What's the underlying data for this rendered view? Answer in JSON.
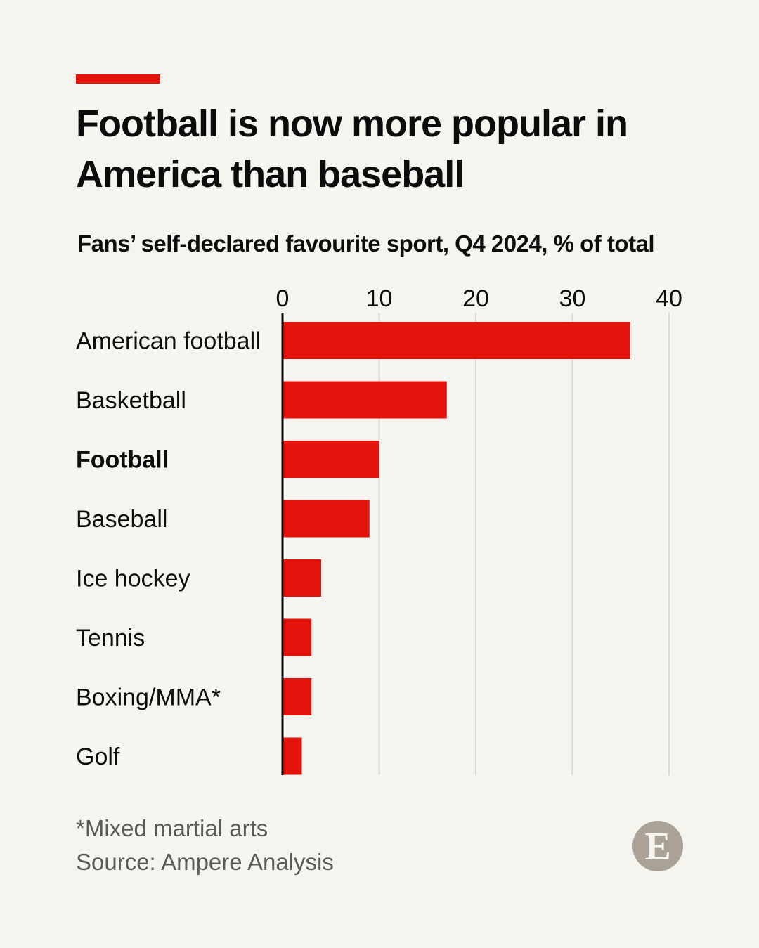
{
  "header": {
    "title": "Football is now more popular in America than baseball",
    "subtitle": "Fans’ self-declared favourite sport, Q4 2024, % of total"
  },
  "footer": {
    "note": "*Mixed martial arts",
    "source": "Source: Ampere Analysis",
    "logo_letter": "E"
  },
  "colors": {
    "accent": "#e3120b",
    "bar": "#e3120b",
    "grid": "#d9d9d9",
    "background": "#f5f4ef"
  },
  "chart_data": {
    "type": "bar",
    "orientation": "horizontal",
    "title": "Fans’ self-declared favourite sport, Q4 2024, % of total",
    "categories": [
      "American football",
      "Basketball",
      "Football",
      "Baseball",
      "Ice hockey",
      "Tennis",
      "Boxing/MMA*",
      "Golf"
    ],
    "highlighted_category": "Football",
    "values": [
      36,
      17,
      10,
      9,
      4,
      3,
      3,
      2
    ],
    "xlim": [
      0,
      40
    ],
    "xticks": [
      0,
      10,
      20,
      30,
      40
    ],
    "grid": true,
    "axis_position": "top"
  }
}
